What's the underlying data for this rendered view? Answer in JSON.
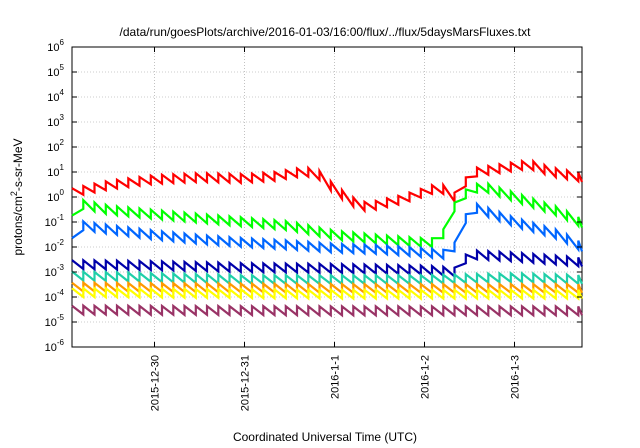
{
  "chart_data": {
    "type": "line",
    "title": "/data/run/goesPlots/archive/2016-01-03/16:00/flux/../flux/5daysMarsFluxes.txt",
    "xlabel": "Coordinated Universal Time (UTC)",
    "ylabel": {
      "prefix": "protons/cm",
      "sup": "2",
      "suffix": "-s-sr-MeV"
    },
    "x_range": [
      "2015-12-29T02:00",
      "2016-01-03T18:00"
    ],
    "y_scale": "log",
    "ylim": [
      1e-06,
      1000000.0
    ],
    "grid": true,
    "y_ticks": [
      {
        "base": "10",
        "exp": "-6",
        "value": 1e-06
      },
      {
        "base": "10",
        "exp": "-5",
        "value": 1e-05
      },
      {
        "base": "10",
        "exp": "-4",
        "value": 0.0001
      },
      {
        "base": "10",
        "exp": "-3",
        "value": 0.001
      },
      {
        "base": "10",
        "exp": "-2",
        "value": 0.01
      },
      {
        "base": "10",
        "exp": "-1",
        "value": 0.1
      },
      {
        "base": "10",
        "exp": "0",
        "value": 1
      },
      {
        "base": "10",
        "exp": "1",
        "value": 10
      },
      {
        "base": "10",
        "exp": "2",
        "value": 100
      },
      {
        "base": "10",
        "exp": "3",
        "value": 1000
      },
      {
        "base": "10",
        "exp": "4",
        "value": 10000
      },
      {
        "base": "10",
        "exp": "5",
        "value": 100000
      },
      {
        "base": "10",
        "exp": "6",
        "value": 1000000
      }
    ],
    "x_ticks": [
      {
        "label": "2015-12-30",
        "value": "2015-12-30T00:00"
      },
      {
        "label": "2015-12-31",
        "value": "2015-12-31T00:00"
      },
      {
        "label": "2016-1-1",
        "value": "2016-01-01T00:00"
      },
      {
        "label": "2016-1-2",
        "value": "2016-01-02T00:00"
      },
      {
        "label": "2016-1-3",
        "value": "2016-01-03T00:00"
      }
    ],
    "series": [
      {
        "color": "#ff0000",
        "style": "sawtooth",
        "points": [
          [
            "2015-12-29T02:00",
            1.5
          ],
          [
            "2015-12-29T12:00",
            3.0
          ],
          [
            "2015-12-30T00:00",
            5.0
          ],
          [
            "2015-12-30T12:00",
            6.0
          ],
          [
            "2015-12-31T00:00",
            5.5
          ],
          [
            "2015-12-31T10:00",
            7.0
          ],
          [
            "2015-12-31T12:00",
            9.0
          ],
          [
            "2015-12-31T19:00",
            10.0
          ],
          [
            "2016-01-01T00:00",
            2.0
          ],
          [
            "2016-01-01T06:00",
            0.5
          ],
          [
            "2016-01-01T09:00",
            0.4
          ],
          [
            "2016-01-01T18:00",
            0.8
          ],
          [
            "2016-01-02T04:00",
            2.5
          ],
          [
            "2016-01-02T08:00",
            1.0
          ],
          [
            "2016-01-02T10:00",
            3.0
          ],
          [
            "2016-01-02T14:00",
            10.0
          ],
          [
            "2016-01-02T22:00",
            15.0
          ],
          [
            "2016-01-03T04:00",
            20.0
          ],
          [
            "2016-01-03T10:00",
            10.0
          ],
          [
            "2016-01-03T18:00",
            6.0
          ]
        ]
      },
      {
        "color": "#00ff00",
        "style": "sawtooth",
        "points": [
          [
            "2015-12-29T02:00",
            0.12
          ],
          [
            "2015-12-29T05:00",
            0.5
          ],
          [
            "2015-12-29T12:00",
            0.3
          ],
          [
            "2015-12-30T00:00",
            0.2
          ],
          [
            "2015-12-30T12:00",
            0.14
          ],
          [
            "2015-12-31T00:00",
            0.1
          ],
          [
            "2015-12-31T12:00",
            0.07
          ],
          [
            "2016-01-01T00:00",
            0.03
          ],
          [
            "2016-01-01T12:00",
            0.02
          ],
          [
            "2016-01-02T00:00",
            0.015
          ],
          [
            "2016-01-02T04:00",
            0.015
          ],
          [
            "2016-01-02T08:00",
            0.4
          ],
          [
            "2016-01-02T12:00",
            2.0
          ],
          [
            "2016-01-02T16:00",
            2.5
          ],
          [
            "2016-01-03T00:00",
            1.0
          ],
          [
            "2016-01-03T12:00",
            0.25
          ],
          [
            "2016-01-03T18:00",
            0.09
          ]
        ]
      },
      {
        "color": "#0066ff",
        "style": "sawtooth",
        "points": [
          [
            "2015-12-29T02:00",
            0.015
          ],
          [
            "2015-12-29T05:00",
            0.07
          ],
          [
            "2015-12-29T12:00",
            0.05
          ],
          [
            "2015-12-30T00:00",
            0.03
          ],
          [
            "2015-12-30T12:00",
            0.02
          ],
          [
            "2015-12-31T00:00",
            0.015
          ],
          [
            "2015-12-31T12:00",
            0.012
          ],
          [
            "2016-01-01T00:00",
            0.009
          ],
          [
            "2016-01-01T12:00",
            0.008
          ],
          [
            "2016-01-02T00:00",
            0.006
          ],
          [
            "2016-01-02T06:00",
            0.005
          ],
          [
            "2016-01-02T08:00",
            0.01
          ],
          [
            "2016-01-02T10:00",
            0.1
          ],
          [
            "2016-01-02T14:00",
            0.35
          ],
          [
            "2016-01-03T00:00",
            0.1
          ],
          [
            "2016-01-03T12:00",
            0.03
          ],
          [
            "2016-01-03T18:00",
            0.01
          ]
        ]
      },
      {
        "color": "#0000aa",
        "style": "sawtooth",
        "points": [
          [
            "2015-12-29T02:00",
            0.002
          ],
          [
            "2015-12-30T00:00",
            0.0018
          ],
          [
            "2015-12-31T00:00",
            0.0015
          ],
          [
            "2016-01-01T00:00",
            0.0014
          ],
          [
            "2016-01-02T00:00",
            0.0012
          ],
          [
            "2016-01-02T08:00",
            0.001
          ],
          [
            "2016-01-02T12:00",
            0.005
          ],
          [
            "2016-01-03T00:00",
            0.004
          ],
          [
            "2016-01-03T18:00",
            0.0025
          ]
        ]
      },
      {
        "color": "#1fcfa8",
        "style": "sawtooth",
        "points": [
          [
            "2015-12-29T02:00",
            0.0007
          ],
          [
            "2015-12-30T00:00",
            0.0006
          ],
          [
            "2015-12-31T00:00",
            0.0005
          ],
          [
            "2016-01-01T00:00",
            0.0005
          ],
          [
            "2016-01-02T00:00",
            0.0005
          ],
          [
            "2016-01-03T00:00",
            0.0006
          ],
          [
            "2016-01-03T18:00",
            0.0005
          ]
        ]
      },
      {
        "color": "#ff9900",
        "style": "sawtooth",
        "points": [
          [
            "2015-12-29T02:00",
            0.00025
          ],
          [
            "2016-01-01T00:00",
            0.00022
          ],
          [
            "2016-01-03T18:00",
            0.00022
          ]
        ]
      },
      {
        "color": "#ffff00",
        "style": "sawtooth",
        "points": [
          [
            "2015-12-29T02:00",
            0.00015
          ],
          [
            "2016-01-01T00:00",
            0.00013
          ],
          [
            "2016-01-03T18:00",
            0.00013
          ]
        ]
      },
      {
        "color": "#993366",
        "style": "sawtooth",
        "points": [
          [
            "2015-12-29T02:00",
            3e-05
          ],
          [
            "2016-01-01T00:00",
            2.8e-05
          ],
          [
            "2016-01-03T18:00",
            2.8e-05
          ]
        ]
      }
    ]
  }
}
